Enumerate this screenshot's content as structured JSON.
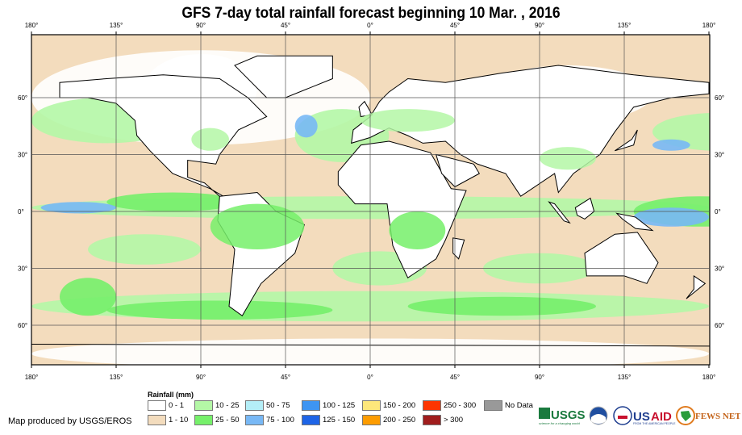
{
  "title": "GFS 7-day total rainfall forecast beginning 10 Mar. , 2016",
  "lon_labels": [
    "180°",
    "135°",
    "90°",
    "45°",
    "0°",
    "45°",
    "90°",
    "135°",
    "180°"
  ],
  "lat_labels": [
    "60°",
    "30°",
    "0°",
    "30°",
    "60°"
  ],
  "legend": {
    "title": "Rainfall (mm)",
    "items": [
      {
        "label": "0 - 1",
        "color": "#ffffff"
      },
      {
        "label": "1 - 10",
        "color": "#f3dcbd"
      },
      {
        "label": "10 - 25",
        "color": "#b4f7a6"
      },
      {
        "label": "25 - 50",
        "color": "#76f06a"
      },
      {
        "label": "50 - 75",
        "color": "#b4eef7"
      },
      {
        "label": "75 - 100",
        "color": "#78b8f5"
      },
      {
        "label": "100 - 125",
        "color": "#3e95f2"
      },
      {
        "label": "125 - 150",
        "color": "#1e64e6"
      },
      {
        "label": "150 - 200",
        "color": "#fde77b"
      },
      {
        "label": "200 - 250",
        "color": "#fd9c00"
      },
      {
        "label": "250 - 300",
        "color": "#fd3500"
      },
      {
        "label": "> 300",
        "color": "#a01d1d"
      },
      {
        "label": "No Data",
        "color": "#999999"
      }
    ]
  },
  "credit": "Map produced by USGS/EROS",
  "logos": {
    "usgs": "USGS",
    "usgs_tagline": "science for a changing world",
    "noaa": "NOAA",
    "usaid": "USAID",
    "usaid_tagline": "FROM THE AMERICAN PEOPLE",
    "fewsnet": "FEWS NET"
  }
}
